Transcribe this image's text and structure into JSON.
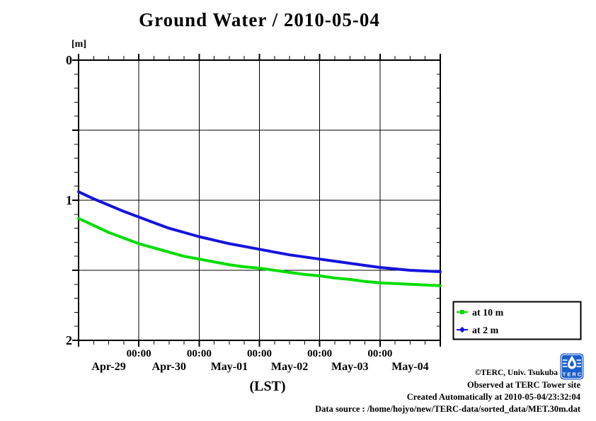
{
  "chart_data": {
    "type": "line",
    "title": "Ground Water / 2010-05-04",
    "y_unit": "[m]",
    "xlabel": "(LST)",
    "x_tick_label": "00:00",
    "categories_days": [
      "Apr-29",
      "Apr-30",
      "May-01",
      "May-02",
      "May-03",
      "May-04"
    ],
    "x_range_days": 6,
    "sample_interval_hours": 6,
    "ylim": [
      0,
      2
    ],
    "y_inverted_depth": true,
    "y_ticks": [
      0,
      1,
      2
    ],
    "y_grid": [
      0.5,
      1,
      1.5
    ],
    "grid": true,
    "legend_position": "outside-right-bottom",
    "series": [
      {
        "name": "at 10 m",
        "color": "#00dc00",
        "marker": "square",
        "values": [
          1.13,
          1.18,
          1.23,
          1.27,
          1.31,
          1.34,
          1.37,
          1.4,
          1.42,
          1.44,
          1.46,
          1.475,
          1.485,
          1.5,
          1.515,
          1.53,
          1.54,
          1.555,
          1.565,
          1.58,
          1.59,
          1.595,
          1.6,
          1.605,
          1.61
        ]
      },
      {
        "name": "at 2 m",
        "color": "#1414dc",
        "marker": "diamond",
        "values": [
          0.94,
          0.99,
          1.035,
          1.08,
          1.12,
          1.16,
          1.2,
          1.23,
          1.26,
          1.285,
          1.31,
          1.33,
          1.35,
          1.37,
          1.39,
          1.405,
          1.42,
          1.435,
          1.45,
          1.465,
          1.48,
          1.49,
          1.5,
          1.505,
          1.51
        ]
      }
    ]
  },
  "footer": {
    "credit": "©TERC, Univ. Tsukuba",
    "observed": "Observed at TERC Tower site",
    "created": "Created Automatically at 2010-05-04/23:32:04",
    "source": "Data source : /home/hojyo/new/TERC-data/sorted_data/MET.30m.dat"
  },
  "logo": {
    "text": "TERC"
  }
}
